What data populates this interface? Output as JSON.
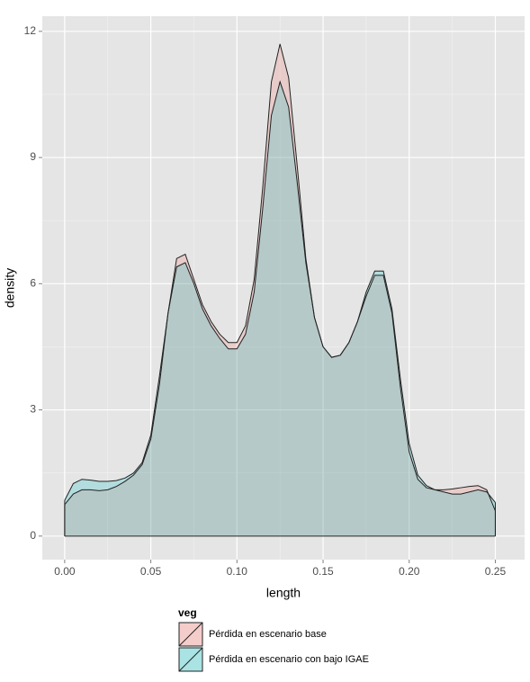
{
  "chart_data": {
    "type": "density",
    "x_label": "length",
    "y_label": "density",
    "legend_title": "veg",
    "x": [
      0,
      0.005,
      0.01,
      0.015,
      0.02,
      0.025,
      0.03,
      0.035,
      0.04,
      0.045,
      0.05,
      0.055,
      0.06,
      0.065,
      0.07,
      0.075,
      0.08,
      0.085,
      0.09,
      0.095,
      0.1,
      0.105,
      0.11,
      0.115,
      0.12,
      0.125,
      0.13,
      0.135,
      0.14,
      0.145,
      0.15,
      0.155,
      0.16,
      0.165,
      0.17,
      0.175,
      0.18,
      0.185,
      0.19,
      0.195,
      0.2,
      0.205,
      0.21,
      0.215,
      0.22,
      0.225,
      0.23,
      0.235,
      0.24,
      0.245,
      0.25
    ],
    "series": [
      {
        "name": "Pérdida en escenario base",
        "color": "#F8766D",
        "values": [
          0.75,
          1.0,
          1.1,
          1.1,
          1.08,
          1.1,
          1.18,
          1.3,
          1.45,
          1.7,
          2.3,
          3.6,
          5.3,
          6.6,
          6.7,
          6.1,
          5.5,
          5.1,
          4.8,
          4.6,
          4.6,
          5.0,
          6.1,
          8.3,
          10.8,
          11.7,
          10.9,
          8.8,
          6.6,
          5.2,
          4.5,
          4.25,
          4.3,
          4.6,
          5.1,
          5.7,
          6.2,
          6.2,
          5.3,
          3.5,
          2.0,
          1.35,
          1.15,
          1.1,
          1.1,
          1.12,
          1.15,
          1.18,
          1.2,
          1.1,
          0.6
        ]
      },
      {
        "name": "Pérdida en escenario con bajo IGAE",
        "color": "#00BFC4",
        "values": [
          0.85,
          1.25,
          1.35,
          1.33,
          1.3,
          1.3,
          1.32,
          1.38,
          1.5,
          1.75,
          2.4,
          3.8,
          5.3,
          6.4,
          6.5,
          6.0,
          5.4,
          5.0,
          4.7,
          4.45,
          4.45,
          4.8,
          5.8,
          7.8,
          10.0,
          10.8,
          10.2,
          8.4,
          6.5,
          5.2,
          4.5,
          4.25,
          4.3,
          4.6,
          5.1,
          5.8,
          6.3,
          6.3,
          5.4,
          3.7,
          2.2,
          1.45,
          1.2,
          1.1,
          1.05,
          1.0,
          1.0,
          1.05,
          1.1,
          1.05,
          0.8
        ]
      }
    ],
    "xlim": [
      -0.013,
      0.267
    ],
    "ylim": [
      -0.56,
      12.36
    ],
    "xticks": [
      {
        "value": 0,
        "label": "0.00"
      },
      {
        "value": 0.05,
        "label": "0.05"
      },
      {
        "value": 0.1,
        "label": "0.10"
      },
      {
        "value": 0.15,
        "label": "0.15"
      },
      {
        "value": 0.2,
        "label": "0.20"
      },
      {
        "value": 0.25,
        "label": "0.25"
      }
    ],
    "yticks": [
      0,
      3,
      6,
      9,
      12
    ],
    "grid": true
  }
}
